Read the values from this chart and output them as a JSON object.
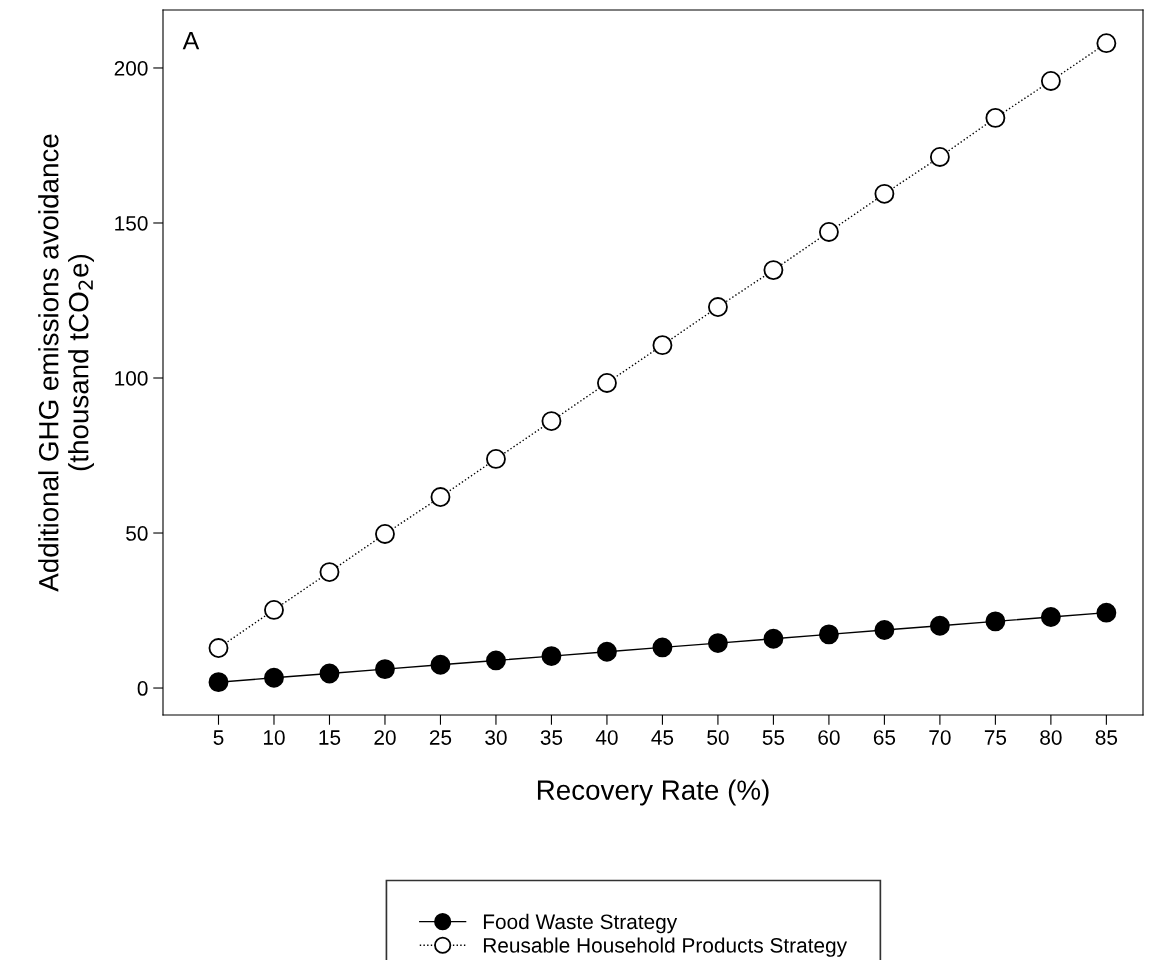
{
  "chart_data": {
    "type": "line",
    "xlabel": "Recovery Rate (%)",
    "ylabel": "Additional GHG emissions avoidance\n(thousand tCO$_{2}$e)",
    "annotations": [
      "A"
    ],
    "x": [
      5,
      10,
      15,
      20,
      25,
      30,
      35,
      40,
      45,
      50,
      55,
      60,
      65,
      70,
      75,
      80,
      85
    ],
    "series": [
      {
        "name": "Food Waste Strategy",
        "color": "#000000",
        "marker": "circle",
        "line_style": "solid",
        "values": [
          1.9,
          3.3,
          4.7,
          6.1,
          7.5,
          8.9,
          10.3,
          11.7,
          13.1,
          14.5,
          15.9,
          17.3,
          18.7,
          20.1,
          21.5,
          22.9,
          24.3
        ]
      },
      {
        "name": "Reusable Household Products Strategy",
        "color": "#000000",
        "marker": "circle",
        "line_style": "dotted",
        "values": [
          12.9,
          25.2,
          37.4,
          49.7,
          61.6,
          73.9,
          86.1,
          98.4,
          110.6,
          122.9,
          134.8,
          147.1,
          159.4,
          171.3,
          183.9,
          195.8,
          208.0
        ]
      }
    ],
    "xlim": [
      0,
      88.3
    ],
    "ylim": [
      -8.7,
      218.7
    ],
    "xticks": [
      5,
      10,
      15,
      20,
      25,
      30,
      35,
      40,
      45,
      50,
      55,
      60,
      65,
      70,
      75,
      80,
      85
    ],
    "yticks": [
      0,
      50,
      100,
      150,
      200
    ],
    "grid": false,
    "legend": "bottom"
  }
}
